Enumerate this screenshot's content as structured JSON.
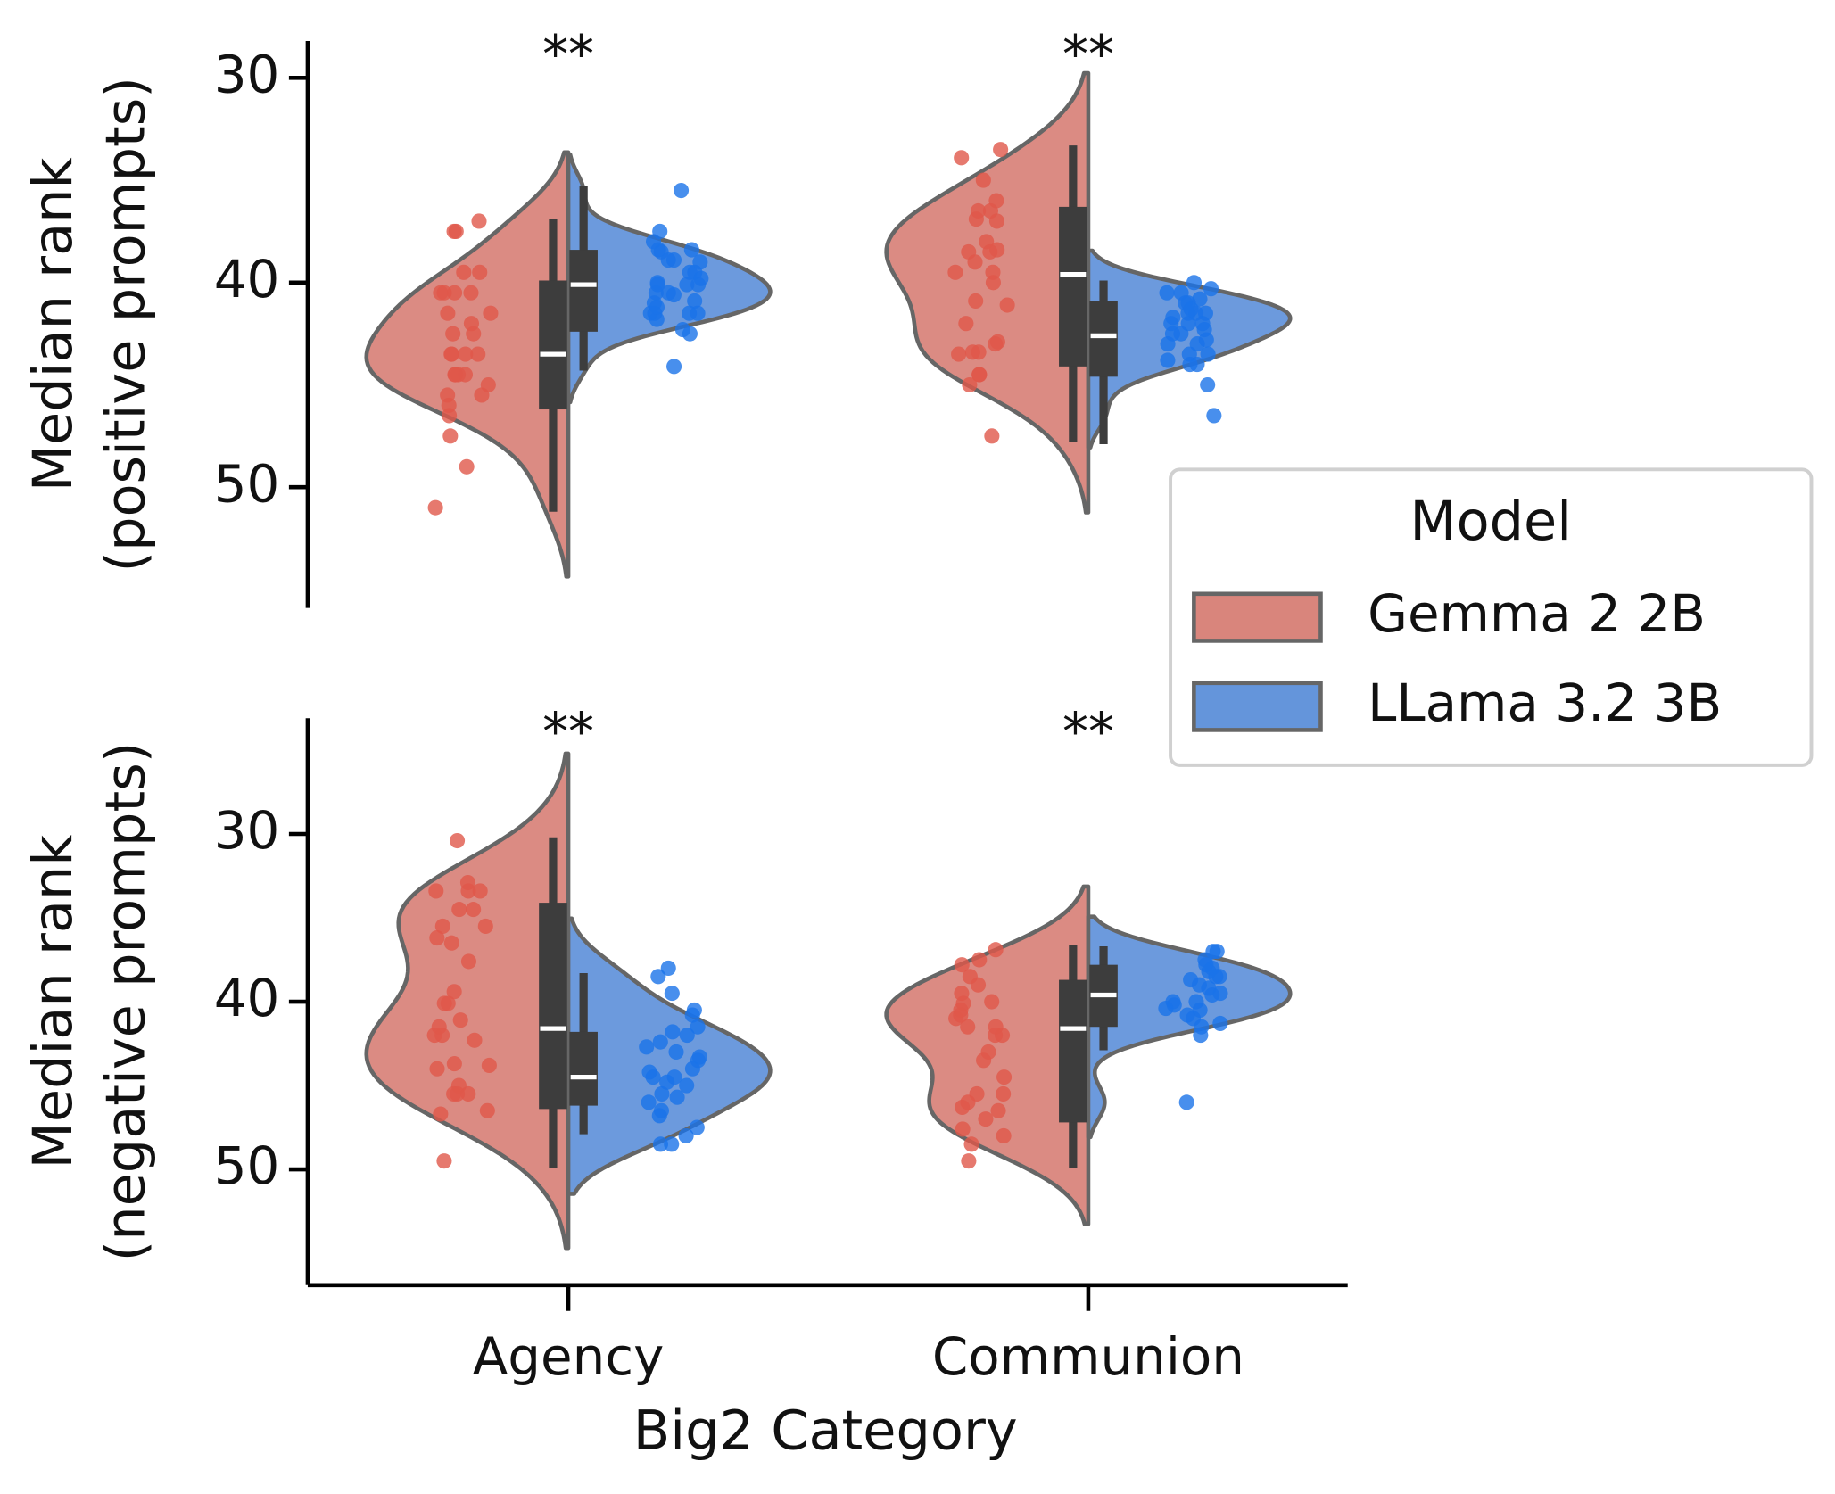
{
  "chart_data": [
    {
      "type": "split-violin",
      "ylabel": [
        "Median rank",
        "(positive prompts)"
      ],
      "categories": [
        "Agency",
        "Communion"
      ],
      "annotations": [
        "**",
        "**"
      ],
      "ylim": [
        28.2,
        55.9
      ],
      "yticks": [
        30,
        40,
        50
      ],
      "invert_y": true,
      "legend_title": "Model",
      "series": [
        {
          "name": "Gemma 2 2B",
          "color": "#e0574a",
          "fill": "#d9857c",
          "points": [
            [
              37.5,
              37.5,
              37.0,
              39.5,
              40.5,
              40.5,
              40.5,
              41.5,
              42.5,
              43.5,
              43.5,
              43.5,
              44.5,
              44.5,
              44.5,
              45.5,
              45.5,
              46.5,
              47.5,
              49.0,
              51.0,
              42.5,
              41.5,
              40.5,
              44.5,
              45.0,
              43.5,
              42.0,
              46.0,
              39.5
            ],
            [
              33.5,
              33.9,
              35.0,
              36.5,
              36.5,
              36.9,
              38.0,
              38.5,
              38.5,
              39.5,
              39.5,
              40.9,
              41.1,
              42.9,
              43.4,
              43.4,
              43.5,
              44.5,
              44.5,
              47.5,
              37.0,
              42.0,
              38.4,
              43.0,
              36.0,
              45.0,
              40.0,
              39.0
            ]
          ],
          "box": [
            {
              "whislo": 36.9,
              "q1": 39.9,
              "med": 43.5,
              "q3": 46.2,
              "whishi": 51.2
            },
            {
              "whislo": 33.3,
              "q1": 36.3,
              "med": 39.6,
              "q3": 44.1,
              "whishi": 47.8
            }
          ]
        },
        {
          "name": "LLama 3.2 3B",
          "color": "#1a73e8",
          "fill": "#6495db",
          "points": [
            [
              35.5,
              37.5,
              38.0,
              38.4,
              38.4,
              38.9,
              38.9,
              39.5,
              39.5,
              40.1,
              40.1,
              40.1,
              40.5,
              40.5,
              41.5,
              41.5,
              41.5,
              42.5,
              44.1,
              41.5,
              40.9,
              39.0,
              41.0,
              40.0,
              38.5,
              41.8,
              39.8,
              40.6,
              42.3,
              41.2
            ],
            [
              40.0,
              40.5,
              40.5,
              41.0,
              41.0,
              41.5,
              41.5,
              41.5,
              42.0,
              42.0,
              42.0,
              42.5,
              42.5,
              43.0,
              43.0,
              43.5,
              43.5,
              44.0,
              44.0,
              45.0,
              46.5,
              40.8,
              41.7,
              42.3,
              42.8,
              41.3,
              40.3,
              43.8
            ]
          ],
          "box": [
            {
              "whislo": 35.3,
              "q1": 38.4,
              "med": 40.1,
              "q3": 42.4,
              "whishi": 44.3
            },
            {
              "whislo": 39.9,
              "q1": 40.9,
              "med": 42.6,
              "q3": 44.6,
              "whishi": 47.9
            }
          ]
        }
      ]
    },
    {
      "type": "split-violin",
      "ylabel": [
        "Median rank",
        "(negative prompts)"
      ],
      "xlabel": "Big2 Category",
      "categories": [
        "Agency",
        "Communion"
      ],
      "annotations": [
        "**",
        "**"
      ],
      "ylim": [
        23.1,
        56.9
      ],
      "yticks": [
        30,
        40,
        50
      ],
      "invert_y": true,
      "series": [
        {
          "name": "Gemma 2 2B",
          "color": "#e0574a",
          "fill": "#d9857c",
          "points": [
            [
              30.4,
              32.9,
              33.4,
              34.5,
              33.4,
              35.5,
              35.5,
              39.4,
              40.1,
              41.1,
              42.0,
              42.0,
              43.7,
              45.5,
              45.5,
              46.7,
              49.5,
              45.5,
              43.8,
              40.1,
              33.4,
              34.5,
              37.6,
              36.2,
              45.0,
              44.0,
              41.5,
              46.5,
              42.3,
              36.5
            ],
            [
              36.9,
              37.5,
              38.5,
              39.5,
              40.0,
              40.5,
              41.0,
              41.5,
              42.0,
              43.0,
              43.5,
              44.5,
              45.5,
              46.0,
              46.5,
              47.0,
              48.0,
              48.5,
              49.5,
              40.1,
              41.5,
              39.0,
              42.0,
              45.5,
              37.8,
              40.8,
              47.6,
              46.3
            ]
          ],
          "box": [
            {
              "whislo": 30.2,
              "q1": 34.1,
              "med": 41.6,
              "q3": 46.4,
              "whishi": 49.9
            },
            {
              "whislo": 36.6,
              "q1": 38.7,
              "med": 41.6,
              "q3": 47.2,
              "whishi": 49.9
            }
          ]
        },
        {
          "name": "LLama 3.2 3B",
          "color": "#1a73e8",
          "fill": "#6495db",
          "points": [
            [
              38.0,
              38.5,
              39.5,
              40.5,
              41.5,
              42.0,
              43.0,
              43.5,
              44.0,
              44.5,
              44.5,
              45.0,
              45.5,
              46.0,
              46.5,
              47.5,
              48.0,
              48.5,
              48.5,
              43.3,
              41.8,
              42.7,
              44.8,
              45.7,
              46.8,
              40.8,
              42.4,
              44.2
            ],
            [
              37.0,
              37.0,
              37.5,
              38.0,
              38.5,
              38.5,
              39.0,
              39.5,
              40.0,
              40.0,
              40.5,
              41.0,
              41.5,
              42.0,
              46.0,
              38.7,
              39.6,
              40.2,
              40.8,
              37.8,
              39.2,
              38.2,
              40.4,
              41.3
            ]
          ],
          "box": [
            {
              "whislo": 38.3,
              "q1": 41.8,
              "med": 44.5,
              "q3": 46.2,
              "whishi": 47.9
            },
            {
              "whislo": 36.7,
              "q1": 37.8,
              "med": 39.6,
              "q3": 41.5,
              "whishi": 42.9
            }
          ]
        }
      ]
    }
  ]
}
